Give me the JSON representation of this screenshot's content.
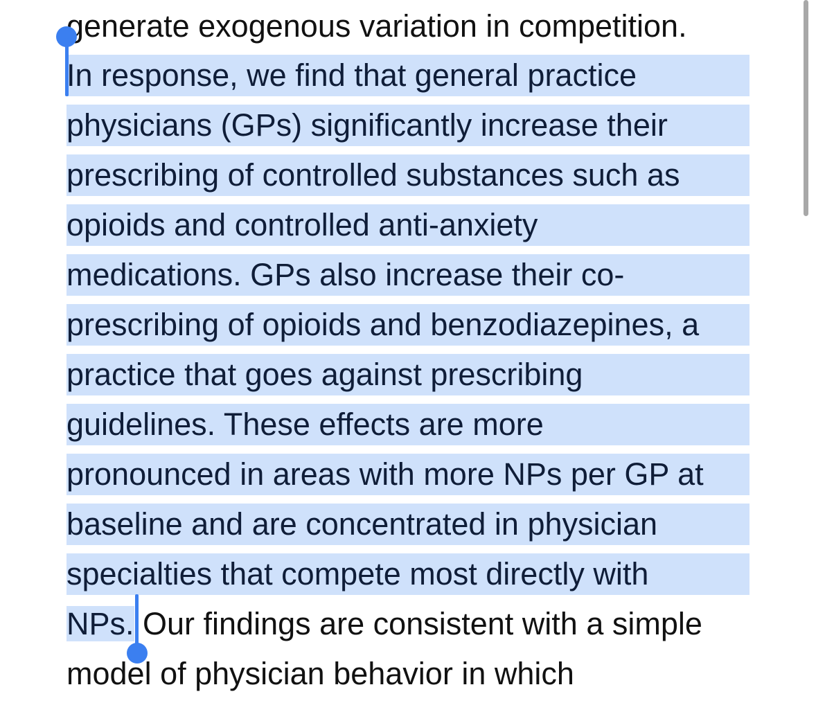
{
  "article": {
    "lines": [
      "generate exogenous variation in competition.",
      "In response, we find that general practice",
      "physicians (GPs) significantly increase their",
      "prescribing of controlled substances such as",
      "opioids and controlled anti-anxiety",
      "medications. GPs also increase their co-",
      "prescribing of opioids and benzodiazepines, a",
      "practice that goes against prescribing",
      "guidelines. These effects are more",
      "pronounced in areas with more NPs per GP at",
      "baseline and are concentrated in physician",
      "specialties that compete most directly with",
      "NPs.",
      " Our findings are consistent with a simple",
      "model of physician behavior in which"
    ]
  },
  "selection": {
    "highlight_color": "#cfe1fb",
    "handle_color": "#3b7ff0",
    "start_handle_icon": "selection-start-handle",
    "end_handle_icon": "selection-end-handle"
  },
  "scroll_indicator": {
    "color": "#a8a8a8"
  }
}
